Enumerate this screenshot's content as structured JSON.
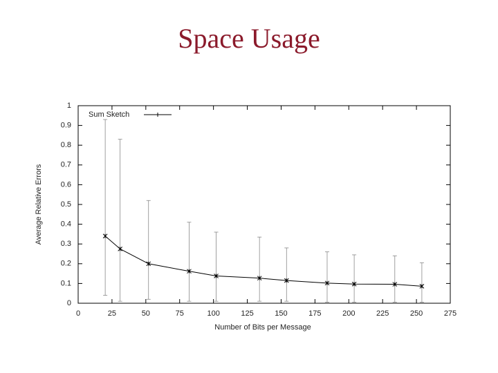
{
  "slide_title": "Space Usage",
  "chart_data": {
    "type": "line",
    "xlabel": "Number of Bits per Message",
    "ylabel": "Average Relative Errors",
    "x": [
      20,
      31,
      52,
      82,
      102,
      134,
      154,
      184,
      204,
      234,
      254
    ],
    "series": [
      {
        "name": "Sum Sketch",
        "color": "#000000",
        "values": [
          0.34,
          0.275,
          0.2,
          0.162,
          0.138,
          0.127,
          0.115,
          0.102,
          0.097,
          0.096,
          0.086
        ],
        "lower": [
          0.04,
          0.01,
          0.02,
          0.01,
          0.01,
          0.01,
          0.01,
          0.005,
          0.005,
          0.005,
          0.005
        ],
        "upper": [
          0.93,
          0.83,
          0.52,
          0.41,
          0.36,
          0.335,
          0.28,
          0.26,
          0.245,
          0.24,
          0.205
        ]
      }
    ],
    "xlim": [
      0,
      275
    ],
    "xticks": [
      0,
      25,
      50,
      75,
      100,
      125,
      150,
      175,
      200,
      225,
      250,
      275
    ],
    "ylim": [
      0,
      1
    ],
    "yticks": [
      0,
      0.1,
      0.2,
      0.3,
      0.4,
      0.5,
      0.6,
      0.7,
      0.8,
      0.9,
      1
    ],
    "legend": "top-left",
    "grid": false
  }
}
